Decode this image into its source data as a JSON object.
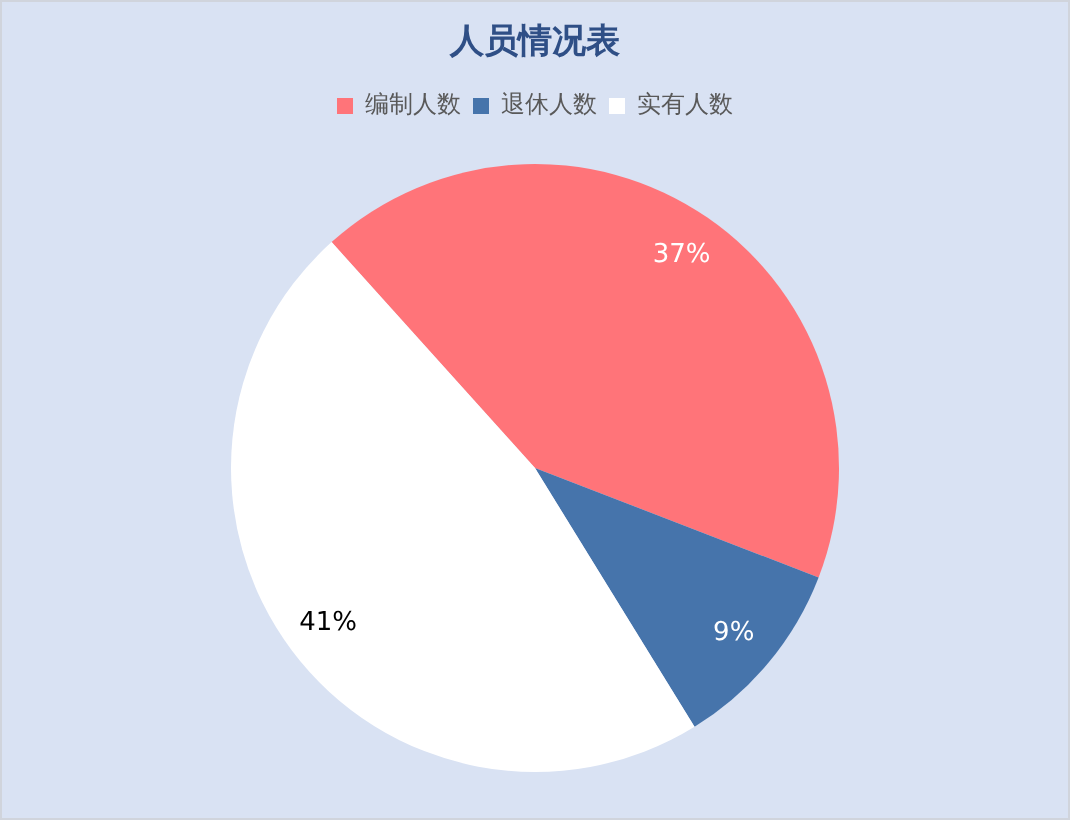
{
  "chart_data": {
    "type": "pie",
    "title": "人员情况表",
    "categories": [
      "编制人数",
      "退休人数",
      "实有人数"
    ],
    "values": [
      37,
      9,
      41
    ],
    "colors": [
      "#ff7479",
      "#4674ab",
      "#ffffff"
    ],
    "value_labels": [
      "37%",
      "9%",
      "41%"
    ],
    "legend": "top"
  }
}
